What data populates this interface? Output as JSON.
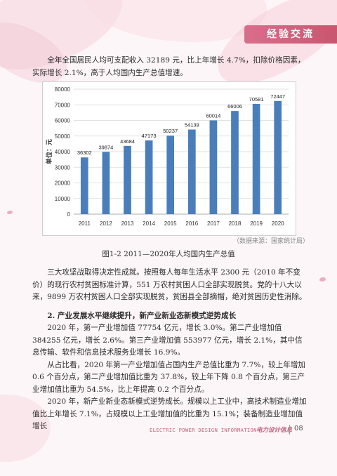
{
  "header": {
    "section_title": "经验交流"
  },
  "intro_paragraph": "全年全国居民人均可支配收入 32189 元，比上年增长 4.7%，扣除价格因素，实际增长 2.1%，高于人均国内生产总值增速。",
  "figure": {
    "source_note": "（数据来源：国家统计局）",
    "caption": "图1-2  2011—2020年人均国内生产总值"
  },
  "chart_data": {
    "type": "bar",
    "categories": [
      "2011",
      "2012",
      "2013",
      "2014",
      "2015",
      "2016",
      "2017",
      "2018",
      "2019",
      "2020"
    ],
    "values": [
      36302,
      39874,
      43684,
      47173,
      50237,
      54139,
      60014,
      66006,
      70581,
      72447
    ],
    "ylabel": "单位：元",
    "ylim": [
      0,
      80000
    ],
    "yticks": [
      0,
      10000,
      20000,
      30000,
      40000,
      50000,
      60000,
      70000,
      80000
    ],
    "bar_color": "#4a7ebb",
    "grid": true
  },
  "body": {
    "paragraph_poverty": "三大攻坚战取得决定性成就。按照每人每年生活水平 2300 元（2010 年不变价）的现行农村贫困标准计算，551 万农村贫困人口全部实现脱贫。党的十八大以来，9899 万农村贫困人口全部实现脱贫，贫困县全部摘帽，绝对贫困历史性消除。",
    "heading_2": "2. 产业发展水平继续提升，新产业新业态新模式逆势成长",
    "paragraph_values": "2020 年，第一产业增加值 77754 亿元，增长 3.0%。第二产业增加值 384255 亿元，增长 2.6%。第三产业增加值 553977 亿元，增长 2.1%，其中信息传输、软件和信息技术服务业增长 16.9%。",
    "paragraph_share": "从占比看，2020 年第一产业增加值占国内生产总值比重为 7.7%，较上年增加 0.6 个百分点，第二产业增加值比重为 37.8%，较上年下降 0.8 个百分点，第三产业增加值比重为 54.5%，比上年提高 0.2 个百分点。",
    "paragraph_new": "2020 年，新产业新业态新模式逆势成长。规模以上工业中，高技术制造业增加值比上年增长 7.1%，占规模以上工业增加值的比重为 15.1%；装备制造业增加值增长"
  },
  "footer": {
    "journal_en": "ELECTRIC POWER DESIGN INFORMATION",
    "journal_cn": "电力设计信息",
    "page_number": "08"
  }
}
